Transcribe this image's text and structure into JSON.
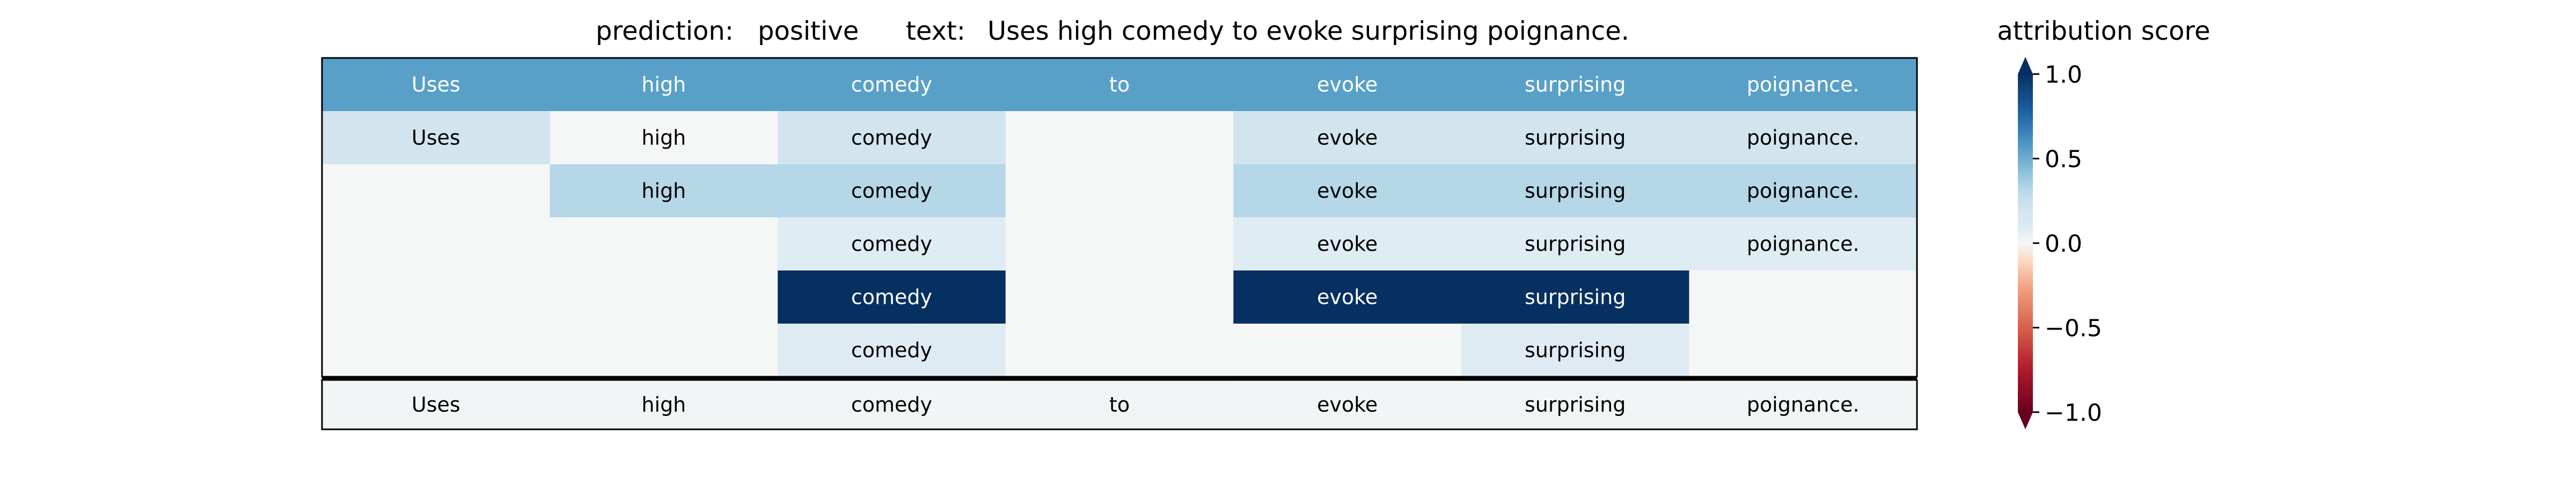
{
  "chart_data": {
    "type": "heatmap",
    "title": {
      "prediction_label": "prediction:",
      "prediction_value": "positive",
      "text_label": "text:",
      "text_value": "Uses high comedy to evoke surprising poignance."
    },
    "tokens": [
      "Uses",
      "high",
      "comedy",
      "to",
      "evoke",
      "surprising",
      "poignance."
    ],
    "matrix": [
      [
        0.55,
        0.55,
        0.55,
        0.55,
        0.55,
        0.55,
        0.55
      ],
      [
        0.2,
        0.0,
        0.2,
        0.0,
        0.2,
        0.2,
        0.2
      ],
      [
        0.0,
        0.32,
        0.32,
        0.0,
        0.32,
        0.32,
        0.32
      ],
      [
        0.0,
        0.0,
        0.08,
        0.0,
        0.08,
        0.08,
        0.08
      ],
      [
        0.0,
        0.0,
        1.0,
        0.0,
        1.0,
        1.0,
        0.0
      ],
      [
        0.0,
        0.0,
        0.09,
        0.0,
        0.0,
        0.09,
        0.0
      ]
    ],
    "matrix_cell_labels": [
      [
        "Uses",
        "high",
        "comedy",
        "to",
        "evoke",
        "surprising",
        "poignance."
      ],
      [
        "Uses",
        "high",
        "comedy",
        "",
        "evoke",
        "surprising",
        "poignance."
      ],
      [
        "",
        "high",
        "comedy",
        "",
        "evoke",
        "surprising",
        "poignance."
      ],
      [
        "",
        "",
        "comedy",
        "",
        "evoke",
        "surprising",
        "poignance."
      ],
      [
        "",
        "",
        "comedy",
        "",
        "evoke",
        "surprising",
        ""
      ],
      [
        "",
        "",
        "comedy",
        "",
        "",
        "surprising",
        ""
      ]
    ],
    "summary_row": [
      0.01,
      0.01,
      0.01,
      0.02,
      0.01,
      0.01,
      0.01
    ],
    "colorbar": {
      "label": "attribution score",
      "vmin": -1.0,
      "vmax": 1.0,
      "ticks": [
        1.0,
        0.5,
        0.0,
        -0.5,
        -1.0
      ],
      "tick_labels": [
        "1.0",
        "0.5",
        "0.0",
        "−0.5",
        "−1.0"
      ],
      "colormap": "RdBu",
      "extend": "both"
    }
  }
}
